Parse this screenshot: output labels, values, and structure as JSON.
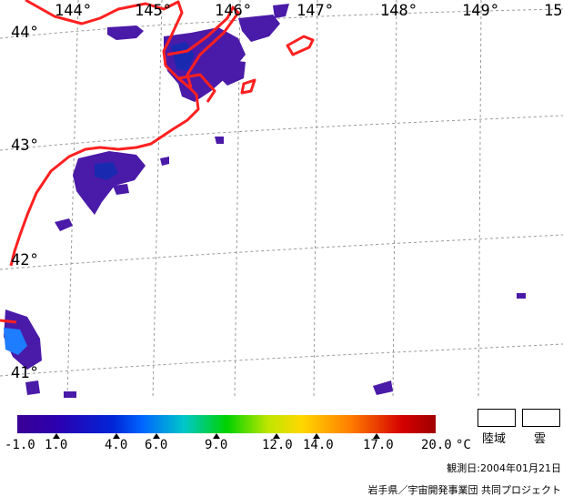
{
  "map": {
    "lon_labels": [
      "144°",
      "145°",
      "146°",
      "147°",
      "148°",
      "149°",
      "15"
    ],
    "lat_labels": [
      "44°",
      "43°",
      "42°",
      "41°"
    ]
  },
  "colorbar": {
    "labels": [
      "-1.0",
      "1.0",
      "4.0",
      "6.0",
      "9.0",
      "12.0",
      "14.0",
      "17.0",
      "20.0"
    ],
    "unit": "°C",
    "colors": {
      "min": "#3a0095",
      "mid": "#00d200",
      "max": "#a00000"
    }
  },
  "legend": {
    "land": "陸域",
    "cloud": "雲"
  },
  "footer": {
    "observation_date": "観測日:2004年01月21日",
    "credit": "岩手県／宇宙開発事業団 共同プロジェクト"
  }
}
